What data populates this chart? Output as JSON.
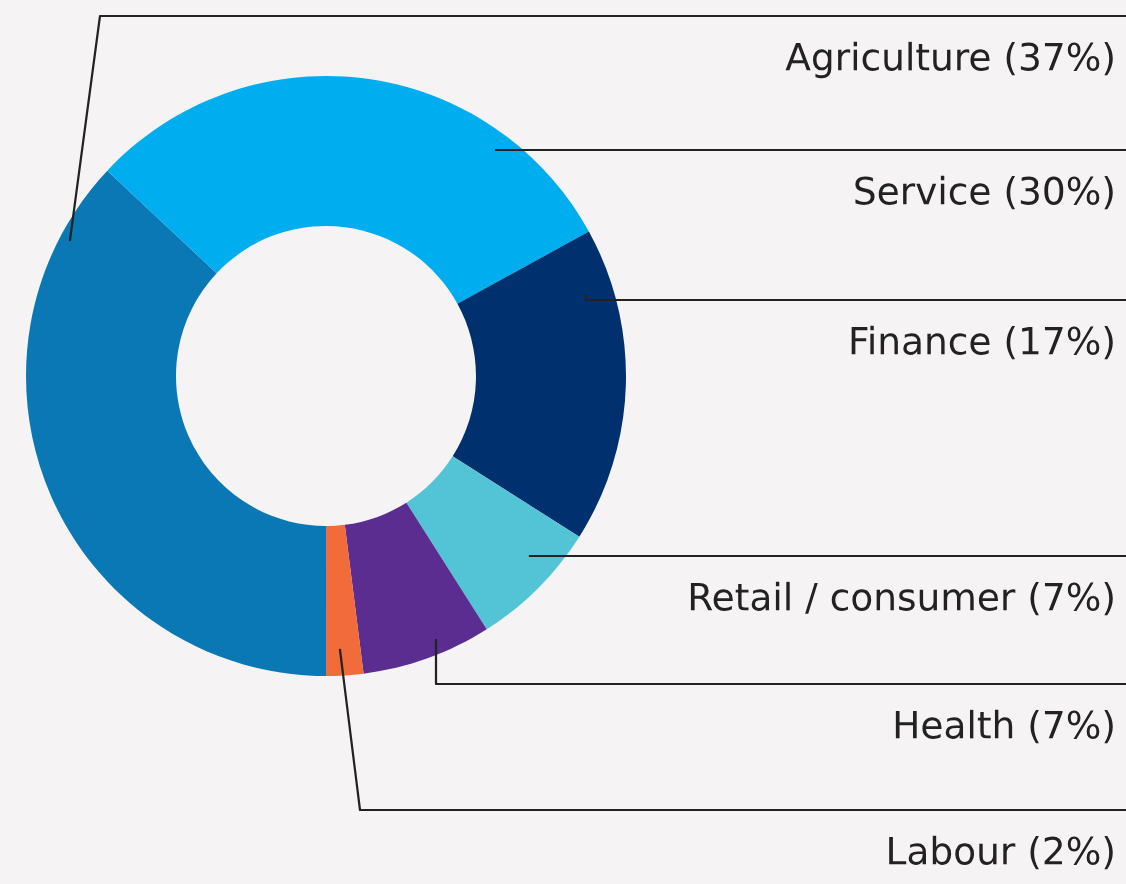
{
  "chart_data": {
    "type": "donut",
    "categories": [
      "Agriculture",
      "Service",
      "Finance",
      "Retail / consumer",
      "Health",
      "Labour"
    ],
    "values": [
      37,
      30,
      17,
      7,
      7,
      2
    ],
    "value_labels": [
      "(37%)",
      "(30%)",
      "(17%)",
      "(7%)",
      "(7%)",
      "(2%)"
    ],
    "colors": [
      "#0a78b4",
      "#00aeef",
      "#00306e",
      "#52c4d6",
      "#5c2d91",
      "#f26b3a"
    ],
    "legend": false
  }
}
